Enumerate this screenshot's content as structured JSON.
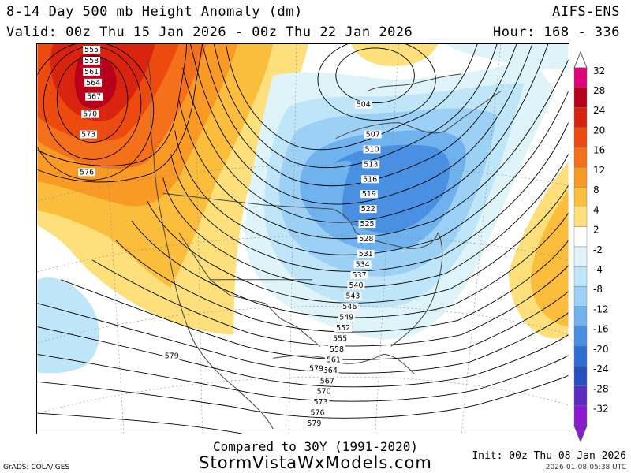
{
  "header": {
    "title": "8-14 Day 500 mb Height Anomaly (dm)",
    "valid": "Valid: 00z Thu 15 Jan 2026 - 00z Thu 22 Jan 2026",
    "model": "AIFS-ENS",
    "hour": "Hour: 168 - 336"
  },
  "footer": {
    "compared": "Compared to 30Y (1991-2020)",
    "site": "StormVistaWxModels.com",
    "grads": "GrADS: COLA/IGES",
    "init": "Init: 00z Thu 08 Jan 2026",
    "stamp": "2026-01-08-05:38 UTC"
  },
  "colorbar": {
    "levels": [
      "32",
      "28",
      "24",
      "20",
      "16",
      "12",
      "8",
      "4",
      "2",
      "-2",
      "-4",
      "-8",
      "-12",
      "-16",
      "-20",
      "-24",
      "-28",
      "-32"
    ],
    "colors": [
      "#e0007a",
      "#b8001c",
      "#d8230e",
      "#ec4a0f",
      "#f5701a",
      "#f99a24",
      "#fbbd3c",
      "#fde07c",
      "#ffffff",
      "#dff4f8",
      "#bfe6f8",
      "#9dd0f5",
      "#6fb2ee",
      "#4a90e2",
      "#2f6cd4",
      "#2650c0",
      "#5b2cbf",
      "#8a1ad6"
    ]
  },
  "map": {
    "contour_labels": {
      "northwest": [
        "555",
        "558",
        "561",
        "564",
        "567",
        "570",
        "573",
        "576"
      ],
      "trough": [
        "504",
        "507",
        "510",
        "513",
        "516",
        "519",
        "522",
        "525",
        "528",
        "531",
        "534",
        "537",
        "540",
        "543",
        "546",
        "549",
        "552",
        "555",
        "558",
        "561",
        "564",
        "567",
        "570",
        "573",
        "576",
        "579"
      ],
      "south": [
        "579",
        "579"
      ]
    }
  }
}
